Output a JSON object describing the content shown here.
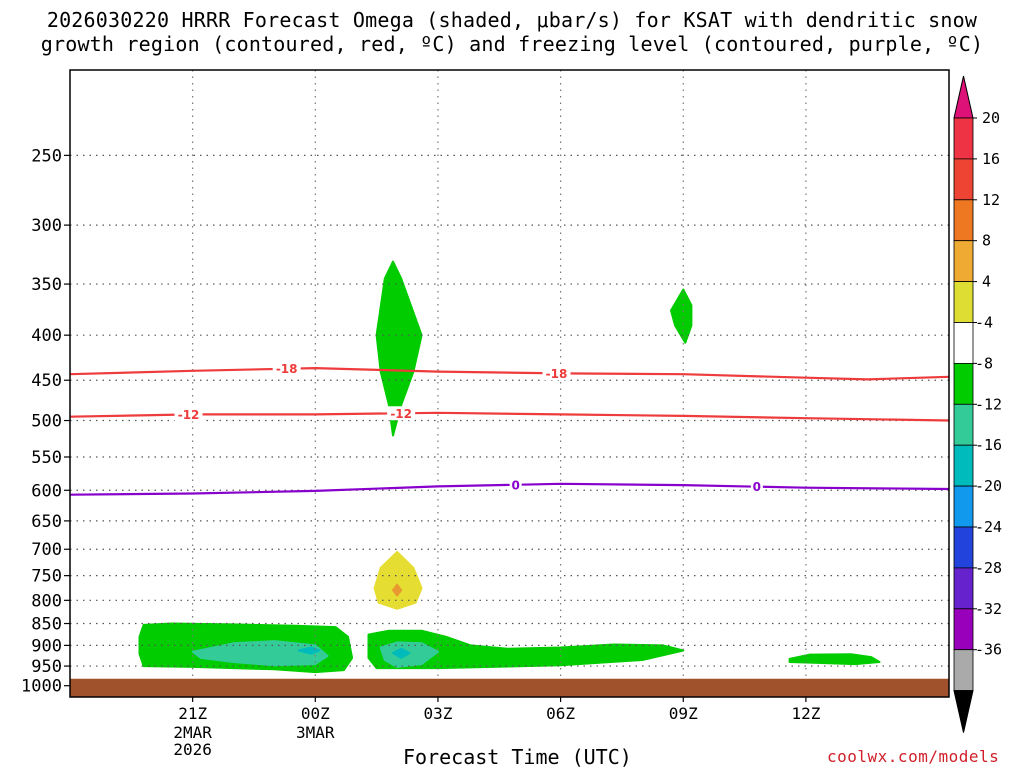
{
  "header": {
    "title_line1": "2026030220 HRRR Forecast Omega (shaded, μbar/s) for KSAT with dendritic snow",
    "title_line2": "growth region (contoured, red, ºC) and freezing level (contoured, purple, ºC)"
  },
  "footer": {
    "xlabel": "Forecast Time (UTC)",
    "credit": "coolwx.com/models"
  },
  "colors": {
    "ground": "#a0522d",
    "omega_green": "#00cc00",
    "omega_teal": "#33cc99",
    "omega_cyan": "#00bbbb",
    "omega_yellow": "#e6dd33",
    "omega_orange": "#e89a30",
    "dgz_line": "#ee3b3b",
    "freezing_line": "#8800cc"
  },
  "chart_data": {
    "type": "time-height cross section",
    "model_run": "2026030220",
    "station": "KSAT",
    "x_hours_range": [
      -2,
      19.5
    ],
    "x_ticks": [
      {
        "hour": 1,
        "label": "21Z",
        "sub": [
          "2MAR",
          "2026"
        ]
      },
      {
        "hour": 4,
        "label": "00Z",
        "sub": [
          "3MAR"
        ]
      },
      {
        "hour": 7,
        "label": "03Z",
        "sub": []
      },
      {
        "hour": 10,
        "label": "06Z",
        "sub": []
      },
      {
        "hour": 13,
        "label": "09Z",
        "sub": []
      },
      {
        "hour": 16,
        "label": "12Z",
        "sub": []
      }
    ],
    "y_axis": {
      "unit": "hPa",
      "range": [
        1030,
        200
      ],
      "ticks": [
        1000,
        950,
        900,
        850,
        800,
        750,
        700,
        650,
        600,
        550,
        500,
        450,
        400,
        350,
        300,
        250
      ]
    },
    "ground_top_hPa": 982,
    "colorbar": {
      "labels": [
        "20",
        "16",
        "12",
        "8",
        "4",
        "-4",
        "-8",
        "-12",
        "-16",
        "-20",
        "-24",
        "-28",
        "-32",
        "-36"
      ],
      "colors": [
        "#ee3344",
        "#ee4433",
        "#ee7722",
        "#eeaa33",
        "#dddd33",
        "#ffffff",
        "#00cc00",
        "#33cc99",
        "#00bbbb",
        "#1199ee",
        "#2244dd",
        "#6622cc",
        "#9900bb",
        "#aaaaaa"
      ],
      "top_arrow_color": "#dd1177",
      "bottom_arrow_color": "#000000"
    },
    "contours": [
      {
        "name": "dgz-minus18",
        "value": -18,
        "color": "#ee3b3b",
        "points": [
          [
            -2,
            443
          ],
          [
            1,
            439
          ],
          [
            4,
            436
          ],
          [
            7,
            440
          ],
          [
            10,
            442
          ],
          [
            13,
            443
          ],
          [
            16,
            447
          ],
          [
            17.5,
            449
          ],
          [
            19.5,
            446
          ]
        ],
        "labels": [
          {
            "hour": 3.3,
            "text": "-18"
          },
          {
            "hour": 9.9,
            "text": "-18"
          }
        ]
      },
      {
        "name": "dgz-minus12",
        "value": -12,
        "color": "#ee3b3b",
        "points": [
          [
            -2,
            495
          ],
          [
            1,
            492
          ],
          [
            4,
            492
          ],
          [
            7,
            490
          ],
          [
            10,
            492
          ],
          [
            13,
            494
          ],
          [
            16,
            497
          ],
          [
            19.5,
            500
          ]
        ],
        "labels": [
          {
            "hour": 0.9,
            "text": "-12"
          },
          {
            "hour": 6.1,
            "text": "-12"
          }
        ]
      },
      {
        "name": "freezing-level-0",
        "value": 0,
        "color": "#8800cc",
        "points": [
          [
            -2,
            607
          ],
          [
            1,
            605
          ],
          [
            4,
            601
          ],
          [
            7,
            594
          ],
          [
            10,
            590
          ],
          [
            13,
            592
          ],
          [
            16,
            596
          ],
          [
            19.5,
            598
          ]
        ],
        "labels": [
          {
            "hour": 8.9,
            "text": "0"
          },
          {
            "hour": 14.8,
            "text": "0"
          }
        ]
      }
    ],
    "omega_features": [
      {
        "name": "green-band-sfc-left",
        "fill": "#00cc00",
        "points": [
          [
            -0.2,
            853
          ],
          [
            0.5,
            850
          ],
          [
            2,
            852
          ],
          [
            3.5,
            855
          ],
          [
            4.5,
            858
          ],
          [
            4.8,
            880
          ],
          [
            4.9,
            930
          ],
          [
            4.7,
            960
          ],
          [
            4,
            965
          ],
          [
            3,
            958
          ],
          [
            1,
            952
          ],
          [
            -0.2,
            950
          ],
          [
            -0.3,
            920
          ],
          [
            -0.3,
            880
          ]
        ]
      },
      {
        "name": "teal-core-left",
        "fill": "#33cc99",
        "points": [
          [
            1,
            915
          ],
          [
            2,
            895
          ],
          [
            3,
            890
          ],
          [
            4,
            900
          ],
          [
            4.3,
            925
          ],
          [
            4,
            945
          ],
          [
            3,
            948
          ],
          [
            2,
            940
          ],
          [
            1.2,
            930
          ]
        ]
      },
      {
        "name": "cyan-core-left",
        "fill": "#00bbbb",
        "points": [
          [
            3.6,
            912
          ],
          [
            3.9,
            905
          ],
          [
            4.1,
            912
          ],
          [
            3.9,
            920
          ]
        ]
      },
      {
        "name": "green-band-sfc-main",
        "fill": "#00cc00",
        "points": [
          [
            5.3,
            875
          ],
          [
            5.8,
            866
          ],
          [
            6.6,
            866
          ],
          [
            7.2,
            880
          ],
          [
            7.8,
            900
          ],
          [
            8.7,
            908
          ],
          [
            10,
            905
          ],
          [
            11.3,
            898
          ],
          [
            12.5,
            900
          ],
          [
            13,
            912
          ],
          [
            12,
            935
          ],
          [
            10,
            948
          ],
          [
            7,
            955
          ],
          [
            5.5,
            955
          ],
          [
            5.3,
            930
          ]
        ]
      },
      {
        "name": "teal-core-main",
        "fill": "#33cc99",
        "points": [
          [
            5.6,
            905
          ],
          [
            6,
            893
          ],
          [
            6.6,
            895
          ],
          [
            7,
            915
          ],
          [
            6.6,
            945
          ],
          [
            6,
            952
          ],
          [
            5.7,
            935
          ]
        ]
      },
      {
        "name": "cyan-core-main",
        "fill": "#00bbbb",
        "points": [
          [
            5.9,
            918
          ],
          [
            6.1,
            908
          ],
          [
            6.3,
            918
          ],
          [
            6.1,
            930
          ]
        ]
      },
      {
        "name": "green-plume-upper",
        "fill": "#00cc00",
        "points": [
          [
            5.9,
            330
          ],
          [
            6.1,
            345
          ],
          [
            6.6,
            400
          ],
          [
            6.4,
            440
          ],
          [
            6.1,
            480
          ],
          [
            5.9,
            520
          ],
          [
            5.8,
            480
          ],
          [
            5.6,
            440
          ],
          [
            5.5,
            400
          ],
          [
            5.7,
            345
          ]
        ]
      },
      {
        "name": "green-blob-upper-right",
        "fill": "#00cc00",
        "points": [
          [
            13,
            355
          ],
          [
            13.2,
            370
          ],
          [
            13.2,
            390
          ],
          [
            13.05,
            408
          ],
          [
            12.8,
            390
          ],
          [
            12.7,
            375
          ]
        ]
      },
      {
        "name": "green-blob-sfc-right",
        "fill": "#00cc00",
        "points": [
          [
            15.6,
            932
          ],
          [
            16.1,
            922
          ],
          [
            17.1,
            921
          ],
          [
            17.6,
            928
          ],
          [
            17.8,
            940
          ],
          [
            17.2,
            945
          ],
          [
            16.2,
            942
          ],
          [
            15.6,
            940
          ]
        ]
      },
      {
        "name": "yellow-blob-low",
        "fill": "#e6dd33",
        "points": [
          [
            6,
            705
          ],
          [
            6.4,
            735
          ],
          [
            6.6,
            775
          ],
          [
            6.45,
            805
          ],
          [
            6,
            818
          ],
          [
            5.55,
            805
          ],
          [
            5.45,
            775
          ],
          [
            5.6,
            735
          ]
        ]
      },
      {
        "name": "orange-dot-low",
        "fill": "#e89a30",
        "points": [
          [
            6,
            768
          ],
          [
            6.1,
            779
          ],
          [
            6,
            790
          ],
          [
            5.9,
            779
          ]
        ]
      }
    ]
  }
}
